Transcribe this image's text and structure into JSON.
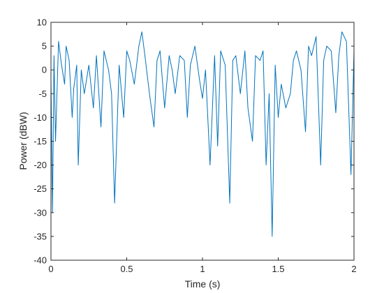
{
  "chart_data": {
    "type": "line",
    "title": "",
    "xlabel": "Time (s)",
    "ylabel": "Power (dBW)",
    "xlim": [
      0,
      2
    ],
    "ylim": [
      -40,
      10
    ],
    "xticks": [
      0,
      0.5,
      1,
      1.5,
      2
    ],
    "xtick_labels": [
      "0",
      "0.5",
      "1",
      "1.5",
      "2"
    ],
    "yticks": [
      -40,
      -35,
      -30,
      -25,
      -20,
      -15,
      -10,
      -5,
      0,
      5,
      10
    ],
    "ytick_labels": [
      "-40",
      "-35",
      "-30",
      "-25",
      "-20",
      "-15",
      "-10",
      "-5",
      "0",
      "5",
      "10"
    ],
    "grid": false,
    "series_color": "#0072bd",
    "series": [
      {
        "x": [
          0,
          0.01,
          0.02,
          0.03,
          0.05,
          0.07,
          0.09,
          0.1,
          0.12,
          0.14,
          0.15,
          0.17,
          0.18,
          0.2,
          0.22,
          0.25,
          0.28,
          0.3,
          0.33,
          0.35,
          0.38,
          0.4,
          0.42,
          0.45,
          0.48,
          0.5,
          0.52,
          0.55,
          0.58,
          0.6,
          0.62,
          0.65,
          0.68,
          0.7,
          0.72,
          0.75,
          0.78,
          0.8,
          0.82,
          0.85,
          0.88,
          0.9,
          0.92,
          0.95,
          0.98,
          1.0,
          1.02,
          1.05,
          1.08,
          1.1,
          1.12,
          1.15,
          1.18,
          1.2,
          1.22,
          1.25,
          1.28,
          1.3,
          1.33,
          1.35,
          1.38,
          1.4,
          1.42,
          1.44,
          1.46,
          1.48,
          1.5,
          1.52,
          1.55,
          1.58,
          1.6,
          1.62,
          1.65,
          1.68,
          1.7,
          1.72,
          1.75,
          1.78,
          1.8,
          1.82,
          1.85,
          1.88,
          1.9,
          1.92,
          1.95,
          1.98,
          2.0
        ],
        "y": [
          -2,
          -30,
          3,
          -15,
          6,
          1,
          -3,
          5,
          2,
          -10,
          -4,
          1,
          -20,
          0,
          -5,
          1,
          -8,
          3,
          -12,
          4,
          0,
          -5,
          -28,
          1,
          -10,
          4,
          2,
          -3,
          5,
          8,
          3,
          -5,
          -12,
          2,
          4,
          -8,
          3,
          0,
          -5,
          3,
          2,
          -10,
          1,
          5,
          -2,
          -6,
          0,
          -20,
          3,
          -16,
          4,
          1,
          -28,
          2,
          3,
          -5,
          4,
          -8,
          -15,
          3,
          2,
          4,
          -20,
          -5,
          -35,
          1,
          -10,
          -3,
          -8,
          -5,
          2,
          4,
          0,
          -13,
          5,
          3,
          7,
          -20,
          2,
          5,
          4,
          -9,
          3,
          8,
          6,
          -22,
          4
        ]
      }
    ]
  }
}
